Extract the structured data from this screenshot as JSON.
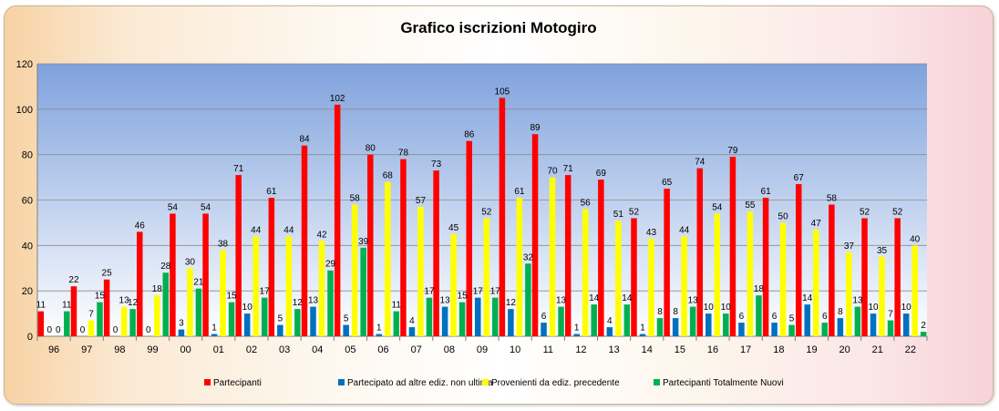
{
  "chart_data": {
    "type": "bar",
    "title": "Grafico  iscrizioni  Motogiro",
    "xlabel": "",
    "ylabel": "",
    "ylim": [
      0,
      120
    ],
    "yticks": [
      0,
      20,
      40,
      60,
      80,
      100,
      120
    ],
    "grid": true,
    "legend_position": "bottom",
    "categories": [
      "96",
      "97",
      "98",
      "99",
      "00",
      "01",
      "02",
      "03",
      "04",
      "05",
      "06",
      "07",
      "08",
      "09",
      "10",
      "11",
      "12",
      "13",
      "14",
      "15",
      "16",
      "17",
      "18",
      "19",
      "20",
      "21",
      "22"
    ],
    "series": [
      {
        "name": "Partecipanti",
        "color": "#ff0000",
        "values": [
          11,
          22,
          25,
          46,
          54,
          54,
          71,
          61,
          84,
          102,
          80,
          78,
          73,
          86,
          105,
          89,
          71,
          69,
          52,
          65,
          74,
          79,
          61,
          67,
          58,
          52,
          52
        ]
      },
      {
        "name": "Partecipato ad altre ediz. non ultima",
        "color": "#0070c0",
        "values": [
          0,
          0,
          0,
          0,
          3,
          1,
          10,
          5,
          13,
          5,
          1,
          4,
          13,
          17,
          12,
          6,
          1,
          4,
          1,
          8,
          10,
          6,
          6,
          14,
          8,
          10,
          10
        ]
      },
      {
        "name": "Provenienti da ediz. precedente",
        "color": "#ffff00",
        "values": [
          0,
          7,
          13,
          18,
          30,
          38,
          44,
          44,
          42,
          58,
          68,
          57,
          45,
          52,
          61,
          70,
          56,
          51,
          43,
          44,
          54,
          55,
          50,
          47,
          37,
          35,
          40
        ]
      },
      {
        "name": "Partecipanti Totalmente Nuovi",
        "color": "#00b050",
        "values": [
          11,
          15,
          12,
          28,
          21,
          15,
          17,
          12,
          29,
          39,
          11,
          17,
          15,
          17,
          32,
          13,
          14,
          14,
          8,
          13,
          10,
          18,
          5,
          6,
          13,
          7,
          2
        ]
      }
    ],
    "plot_colors": {
      "top": "#7fa2dd",
      "bottom": "#ffffff",
      "grid": "#8c8c8c"
    }
  }
}
